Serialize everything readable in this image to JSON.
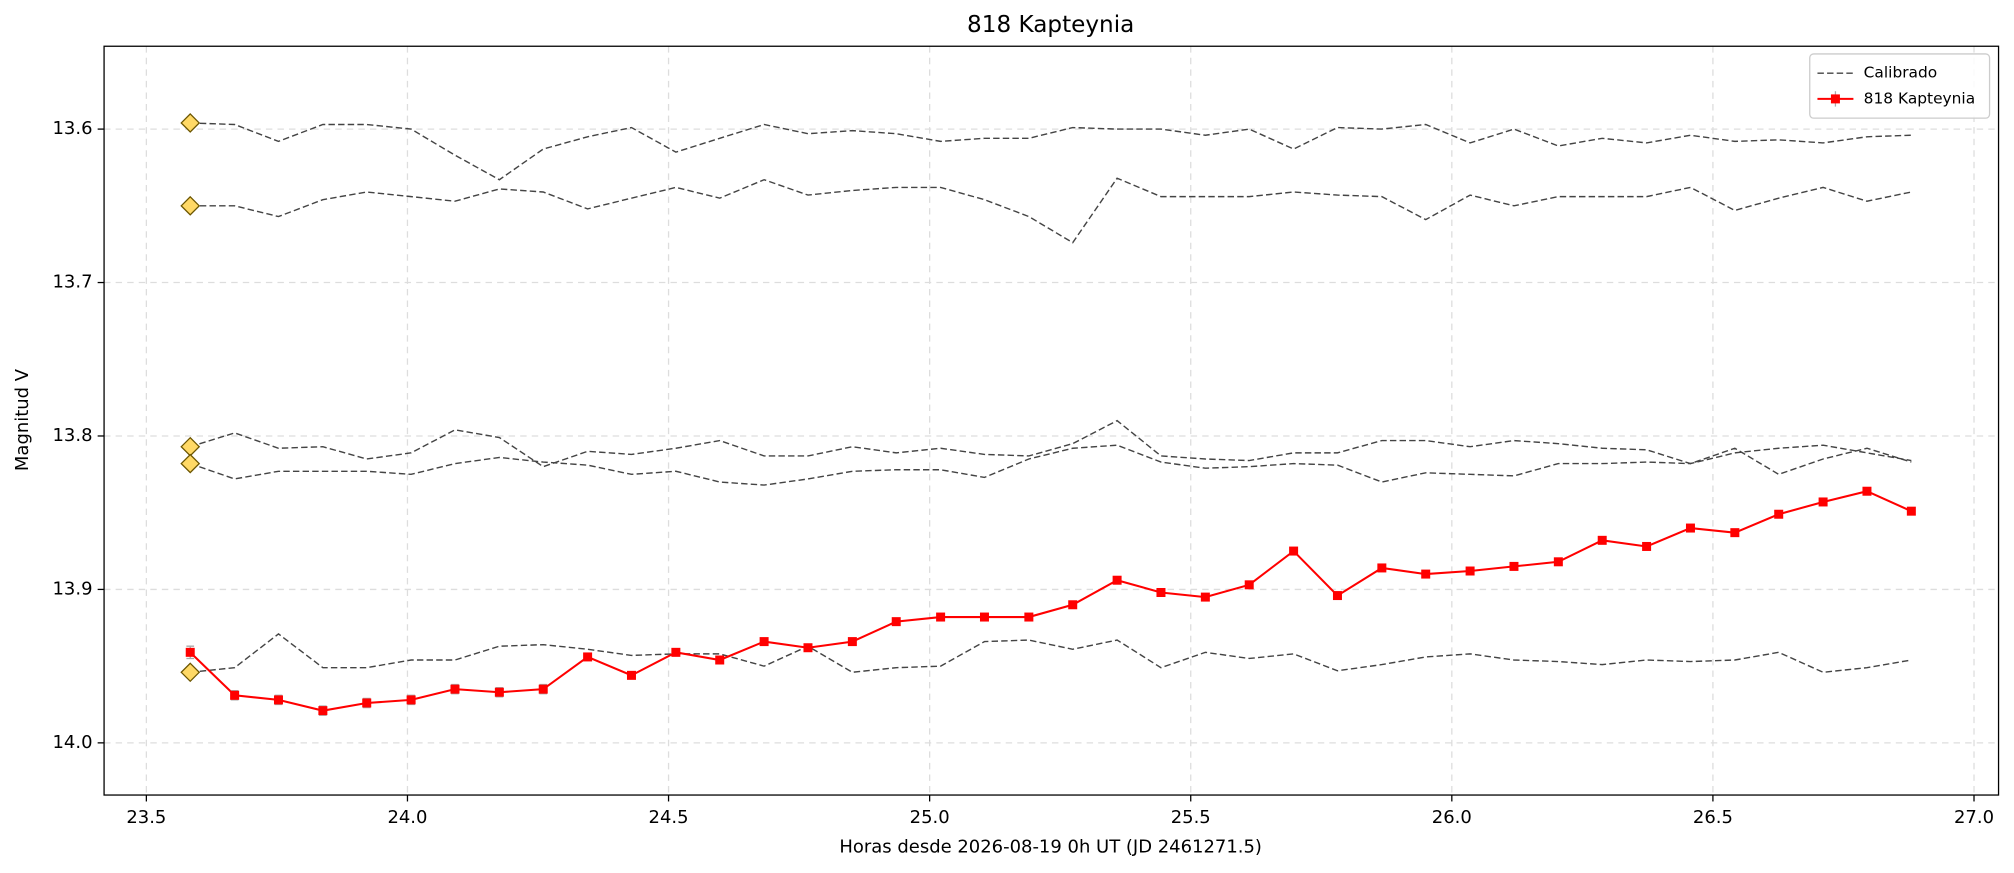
{
  "chart_data": {
    "type": "line",
    "title": "818 Kapteynia",
    "xlabel": "Horas desde 2026-08-19 0h UT (JD 2461271.5)",
    "ylabel": "Magnitud V",
    "xlim": [
      23.419,
      27.047
    ],
    "ylim": [
      14.034,
      13.546
    ],
    "xticks": [
      23.5,
      {
        "value": 24,
        "label": "24.0"
      },
      24.5,
      {
        "value": 25,
        "label": "25.0"
      },
      25.5,
      {
        "value": 26,
        "label": "26.0"
      },
      26.5,
      {
        "value": 27,
        "label": "27.0"
      }
    ],
    "yticks": [
      13.6,
      13.7,
      13.8,
      13.9,
      {
        "value": 14,
        "label": "14.0"
      }
    ],
    "grid": true,
    "legend": "upper right",
    "start_marker_color": "#ffd966",
    "x": [
      23.584,
      23.669,
      23.753,
      23.838,
      23.922,
      24.007,
      24.091,
      24.176,
      24.26,
      24.345,
      24.429,
      24.514,
      24.598,
      24.683,
      24.767,
      24.852,
      24.936,
      25.021,
      25.105,
      25.19,
      25.274,
      25.359,
      25.443,
      25.528,
      25.612,
      25.697,
      25.781,
      25.866,
      25.95,
      26.035,
      26.119,
      26.204,
      26.288,
      26.373,
      26.457,
      26.542,
      26.626,
      26.711,
      26.795,
      26.88
    ],
    "series": [
      {
        "name": "Calibrado",
        "color": "#444444",
        "style": "dashed",
        "values": [
          13.596,
          13.597,
          13.608,
          13.597,
          13.597,
          13.6,
          13.617,
          13.633,
          13.613,
          13.605,
          13.599,
          13.615,
          13.606,
          13.597,
          13.603,
          13.601,
          13.603,
          13.608,
          13.606,
          13.606,
          13.599,
          13.6,
          13.6,
          13.604,
          13.6,
          13.613,
          13.599,
          13.6,
          13.597,
          13.609,
          13.6,
          13.611,
          13.606,
          13.609,
          13.604,
          13.608,
          13.607,
          13.609,
          13.605,
          13.604
        ]
      },
      {
        "color": "#444444",
        "style": "dashed",
        "values": [
          13.65,
          13.65,
          13.657,
          13.646,
          13.641,
          13.644,
          13.647,
          13.639,
          13.641,
          13.652,
          13.645,
          13.638,
          13.645,
          13.633,
          13.643,
          13.64,
          13.638,
          13.638,
          13.646,
          13.657,
          13.674,
          13.632,
          13.644,
          13.644,
          13.644,
          13.641,
          13.643,
          13.644,
          13.659,
          13.643,
          13.65,
          13.644,
          13.644,
          13.644,
          13.638,
          13.653,
          13.645,
          13.638,
          13.647,
          13.641
        ]
      },
      {
        "color": "#444444",
        "style": "dashed",
        "values": [
          13.807,
          13.798,
          13.808,
          13.807,
          13.815,
          13.811,
          13.796,
          13.801,
          13.82,
          13.81,
          13.812,
          13.808,
          13.803,
          13.813,
          13.813,
          13.807,
          13.811,
          13.808,
          13.812,
          13.813,
          13.805,
          13.79,
          13.813,
          13.815,
          13.816,
          13.811,
          13.811,
          13.803,
          13.803,
          13.807,
          13.803,
          13.805,
          13.808,
          13.809,
          13.818,
          13.808,
          13.825,
          13.815,
          13.808,
          13.817
        ]
      },
      {
        "color": "#444444",
        "style": "dashed",
        "values": [
          13.818,
          13.828,
          13.823,
          13.823,
          13.823,
          13.825,
          13.818,
          13.814,
          13.817,
          13.819,
          13.825,
          13.823,
          13.83,
          13.832,
          13.828,
          13.823,
          13.822,
          13.822,
          13.827,
          13.815,
          13.808,
          13.806,
          13.817,
          13.821,
          13.82,
          13.818,
          13.819,
          13.83,
          13.824,
          13.825,
          13.826,
          13.818,
          13.818,
          13.817,
          13.818,
          13.811,
          13.808,
          13.806,
          13.811,
          13.816
        ]
      },
      {
        "color": "#444444",
        "style": "dashed",
        "values": [
          13.954,
          13.951,
          13.929,
          13.951,
          13.951,
          13.946,
          13.946,
          13.937,
          13.936,
          13.939,
          13.943,
          13.942,
          13.942,
          13.95,
          13.937,
          13.954,
          13.951,
          13.95,
          13.934,
          13.933,
          13.939,
          13.933,
          13.951,
          13.941,
          13.945,
          13.942,
          13.953,
          13.949,
          13.944,
          13.942,
          13.946,
          13.947,
          13.949,
          13.946,
          13.947,
          13.946,
          13.941,
          13.954,
          13.951,
          13.946
        ]
      },
      {
        "name": "818 Kapteynia",
        "color": "#ff0000",
        "style": "solid",
        "marker": "square",
        "error_color": "#aaaaaa",
        "values": [
          13.941,
          13.969,
          13.972,
          13.979,
          13.974,
          13.972,
          13.965,
          13.967,
          13.965,
          13.944,
          13.956,
          13.941,
          13.946,
          13.934,
          13.938,
          13.934,
          13.921,
          13.918,
          13.918,
          13.918,
          13.91,
          13.894,
          13.902,
          13.905,
          13.897,
          13.875,
          13.904,
          13.886,
          13.89,
          13.888,
          13.885,
          13.882,
          13.868,
          13.872,
          13.86,
          13.863,
          13.851,
          13.843,
          13.836,
          13.849
        ],
        "errors": [
          0.004,
          0.003,
          0.003,
          0.003,
          0.003,
          0.003,
          0.003,
          0.003,
          0.003,
          0.002,
          0.002,
          0.002,
          0.002,
          0.002,
          0.002,
          0.002,
          0.002,
          0.002,
          0.002,
          0.002,
          0.002,
          0.002,
          0.002,
          0.002,
          0.002,
          0.002,
          0.002,
          0.002,
          0.002,
          0.002,
          0.002,
          0.002,
          0.002,
          0.002,
          0.002,
          0.002,
          0.002,
          0.002,
          0.002,
          0.002
        ]
      }
    ]
  }
}
